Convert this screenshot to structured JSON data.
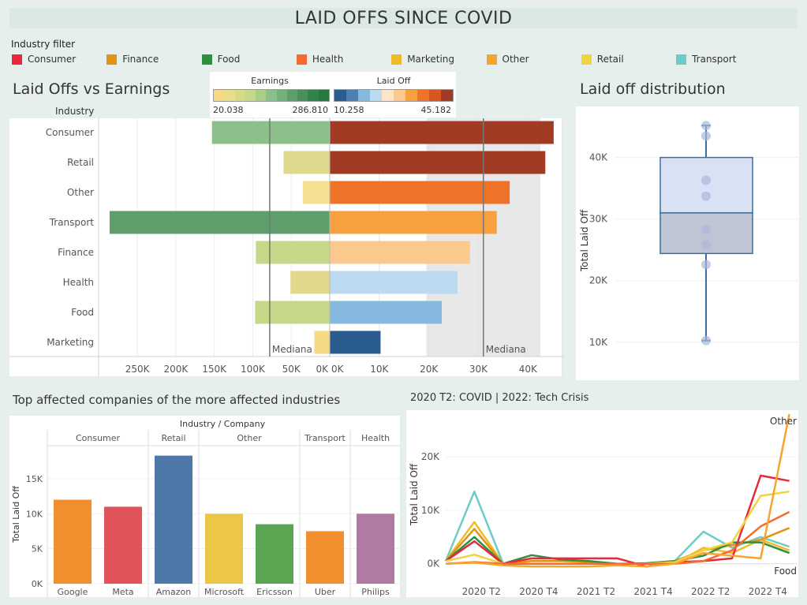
{
  "page": {
    "title": "LAID OFFS SINCE COVID"
  },
  "filter": {
    "title": "Industry filter",
    "items": [
      {
        "label": "Consumer",
        "color": "#e8293b"
      },
      {
        "label": "Finance",
        "color": "#e09412"
      },
      {
        "label": "Food",
        "color": "#2f8f40"
      },
      {
        "label": "Health",
        "color": "#f36b30"
      },
      {
        "label": "Marketing",
        "color": "#f1ba2c"
      },
      {
        "label": "Other",
        "color": "#f7a32d"
      },
      {
        "label": "Retail",
        "color": "#f2d23d"
      },
      {
        "label": "Transport",
        "color": "#6cccc7"
      }
    ]
  },
  "butterfly": {
    "title": "Laid Offs vs Earnings",
    "industry_header": "Industry",
    "earnings_legend": {
      "title": "Earnings",
      "min": "20.038",
      "max": "286.810"
    },
    "laidoff_legend": {
      "title": "Laid Off",
      "min": "10.258",
      "max": "45.182"
    },
    "median_label_left": "Mediana",
    "median_label_right": "Mediana"
  },
  "boxplot": {
    "title": "Laid off distribution"
  },
  "companies": {
    "title": "Top affected companies of the more affected industries",
    "header": "Industry / Company"
  },
  "timeline": {
    "title": "2020 T2: COVID | 2022: Tech Crisis"
  },
  "chart_data": [
    {
      "type": "bar",
      "name": "Laid Offs vs Earnings",
      "categories": [
        "Consumer",
        "Retail",
        "Other",
        "Transport",
        "Finance",
        "Health",
        "Food",
        "Marketing"
      ],
      "series": [
        {
          "name": "Earnings",
          "values": [
            153000,
            60000,
            35000,
            286000,
            96000,
            51000,
            97000,
            20000
          ],
          "colors": [
            "#8cc08a",
            "#dfd98e",
            "#f5df90",
            "#5f9e6c",
            "#c5d989",
            "#e1d88b",
            "#c5d989",
            "#f5d985"
          ]
        },
        {
          "name": "Laid Off",
          "values": [
            45182,
            43500,
            36300,
            33700,
            28300,
            25800,
            22600,
            10258
          ],
          "colors": [
            "#a23b24",
            "#a23b24",
            "#ef7228",
            "#f7a040",
            "#fbc88e",
            "#bcdbf1",
            "#86b9dd",
            "#2b5c8e"
          ]
        }
      ],
      "earnings_axis": {
        "ticks": [
          250000,
          200000,
          150000,
          100000,
          50000,
          0
        ],
        "tick_labels": [
          "250K",
          "200K",
          "150K",
          "100K",
          "50K",
          "0K"
        ],
        "range": [
          0,
          287000
        ]
      },
      "laidoff_axis": {
        "ticks": [
          0,
          10000,
          20000,
          30000,
          40000
        ],
        "tick_labels": [
          "0K",
          "10K",
          "20K",
          "30K",
          "40K"
        ],
        "range": [
          0,
          46000
        ]
      },
      "earnings_median": 78000,
      "laidoff_median": 31000,
      "shaded_band": [
        19500,
        42500
      ]
    },
    {
      "type": "box",
      "name": "Laid off distribution",
      "ylabel": "Total Laid Off",
      "ylim": [
        6000,
        47000
      ],
      "yticks": [
        10000,
        20000,
        30000,
        40000
      ],
      "ytick_labels": [
        "10K",
        "20K",
        "30K",
        "40K"
      ],
      "points": [
        45182,
        43500,
        36300,
        33700,
        28300,
        25800,
        22600,
        10258
      ],
      "q1": 24400,
      "median": 31000,
      "q3": 40000,
      "whisker_low": 10258,
      "whisker_high": 45182
    },
    {
      "type": "bar",
      "name": "Top affected companies",
      "xlabel": "Industry / Company",
      "ylabel": "Total Laid Off",
      "groups": [
        {
          "industry": "Consumer",
          "companies": [
            "Google",
            "Meta"
          ]
        },
        {
          "industry": "Retail",
          "companies": [
            "Amazon"
          ]
        },
        {
          "industry": "Other",
          "companies": [
            "Microsoft",
            "Ericsson"
          ]
        },
        {
          "industry": "Transport",
          "companies": [
            "Uber"
          ]
        },
        {
          "industry": "Health",
          "companies": [
            "Philips"
          ]
        }
      ],
      "categories": [
        "Google",
        "Meta",
        "Amazon",
        "Microsoft",
        "Ericsson",
        "Uber",
        "Philips"
      ],
      "values": [
        12000,
        11000,
        18300,
        10000,
        8500,
        7500,
        10000
      ],
      "colors": [
        "#f38e2e",
        "#e15358",
        "#4e78a8",
        "#ecc745",
        "#5aa452",
        "#f38e2e",
        "#b17aa2"
      ],
      "ylim": [
        0,
        19500
      ],
      "yticks": [
        0,
        5000,
        10000,
        15000
      ],
      "ytick_labels": [
        "0K",
        "5K",
        "10K",
        "15K"
      ]
    },
    {
      "type": "line",
      "name": "2020 T2: COVID | 2022: Tech Crisis",
      "ylabel": "Total Laid Off",
      "x": [
        "2020 T1",
        "2020 T2",
        "2020 T3",
        "2020 T4",
        "2021 T1",
        "2021 T2",
        "2021 T3",
        "2021 T4",
        "2022 T1",
        "2022 T2",
        "2022 T3",
        "2022 T4",
        "2023 T1"
      ],
      "x_tick_labels": [
        "2020 T2",
        "2020 T4",
        "2021 T2",
        "2021 T4",
        "2022 T2",
        "2022 T4"
      ],
      "x_tick_positions": [
        1,
        3,
        5,
        7,
        9,
        11
      ],
      "ylim": [
        -3000,
        28000
      ],
      "yticks": [
        0,
        10000,
        20000
      ],
      "ytick_labels": [
        "0K",
        "10K",
        "20K"
      ],
      "series": [
        {
          "name": "Transport",
          "color": "#6cccc7",
          "values": [
            500,
            13500,
            100,
            0,
            0,
            0,
            0,
            0,
            500,
            6000,
            3000,
            5000,
            3200
          ]
        },
        {
          "name": "Marketing",
          "color": "#f1ba2c",
          "values": [
            500,
            7800,
            0,
            0,
            0,
            0,
            0,
            0,
            0,
            3000,
            2000,
            4500,
            2500
          ]
        },
        {
          "name": "Finance",
          "color": "#e09412",
          "values": [
            500,
            6500,
            0,
            500,
            500,
            300,
            0,
            0,
            500,
            2500,
            3500,
            4500,
            6700
          ]
        },
        {
          "name": "Food",
          "color": "#2f8f40",
          "values": [
            500,
            5000,
            0,
            1600,
            800,
            500,
            0,
            100,
            500,
            1500,
            4000,
            4000,
            2000
          ]
        },
        {
          "name": "Consumer",
          "color": "#e8293b",
          "values": [
            500,
            4200,
            0,
            1000,
            1000,
            1000,
            1000,
            -500,
            300,
            500,
            1000,
            16500,
            15500
          ]
        },
        {
          "name": "Retail",
          "color": "#f2d23d",
          "values": [
            500,
            1700,
            0,
            0,
            0,
            0,
            0,
            0,
            300,
            2500,
            4000,
            12700,
            13500
          ]
        },
        {
          "name": "Health",
          "color": "#f36b30",
          "values": [
            0,
            300,
            0,
            0,
            0,
            0,
            0,
            0,
            0,
            500,
            2500,
            7000,
            9700
          ]
        },
        {
          "name": "Other",
          "color": "#f7a32d",
          "values": [
            0,
            200,
            -300,
            -500,
            -500,
            -500,
            -300,
            -500,
            0,
            2000,
            1500,
            1000,
            28000
          ]
        }
      ],
      "end_labels": [
        "Other",
        "Food"
      ]
    }
  ]
}
